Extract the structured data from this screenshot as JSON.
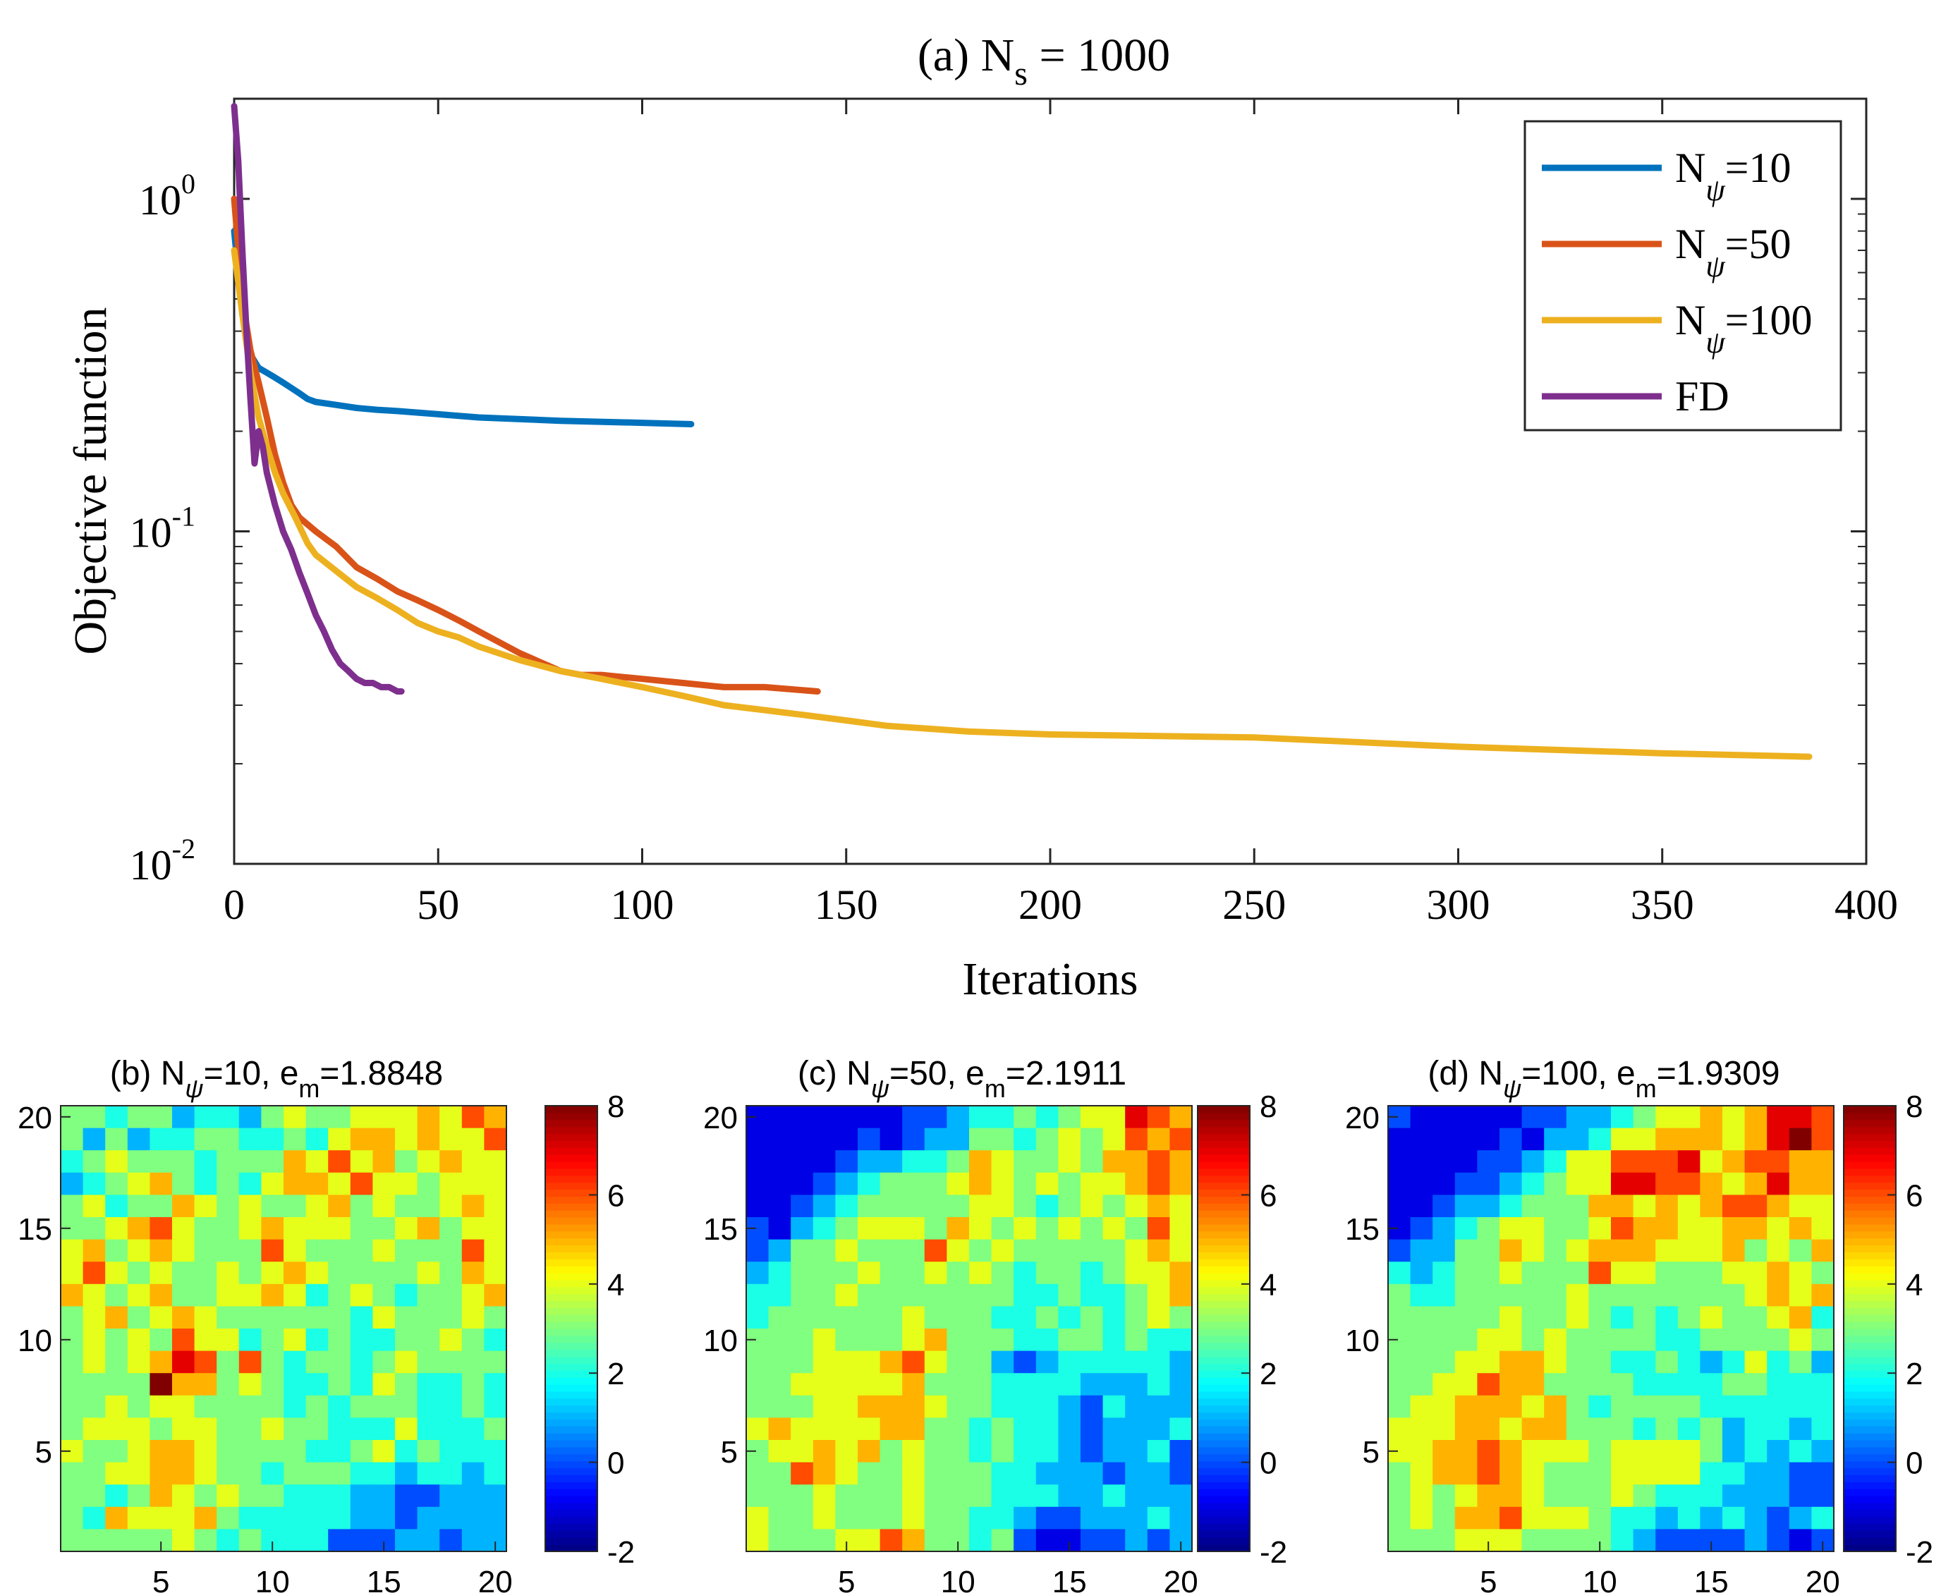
{
  "colors": {
    "blue": "#0072BD",
    "orange": "#D95319",
    "yellow": "#EDB120",
    "purple": "#7E2F8E",
    "axis": "#262626"
  },
  "chart_data": [
    {
      "type": "line",
      "title": "(a) N_s = 1000",
      "title_parts": {
        "prefix": "(a) N",
        "sub": "s",
        "suffix": " = 1000"
      },
      "xlabel": "Iterations",
      "ylabel": "Objective function",
      "yscale": "log",
      "xlim": [
        0,
        400
      ],
      "ylim": [
        0.01,
        2
      ],
      "xticks": [
        0,
        50,
        100,
        150,
        200,
        250,
        300,
        350,
        400
      ],
      "xtick_labels": [
        "0",
        "50",
        "100",
        "150",
        "200",
        "250",
        "300",
        "350",
        "400"
      ],
      "yticks": [
        0.01,
        0.1,
        1
      ],
      "ytick_labels": [
        {
          "base": "10",
          "exp": "-2"
        },
        {
          "base": "10",
          "exp": "-1"
        },
        {
          "base": "10",
          "exp": "0"
        }
      ],
      "legend_position": "top-right",
      "series": [
        {
          "name": "N_ψ=10",
          "label_base": "N",
          "label_sub": "ψ",
          "label_suffix": "=10",
          "color": "#0072BD",
          "x": [
            0,
            2,
            4,
            6,
            8,
            10,
            12,
            14,
            16,
            18,
            20,
            25,
            30,
            35,
            40,
            50,
            60,
            80,
            100,
            112
          ],
          "y": [
            0.8,
            0.45,
            0.34,
            0.31,
            0.3,
            0.29,
            0.28,
            0.27,
            0.26,
            0.25,
            0.245,
            0.24,
            0.235,
            0.232,
            0.23,
            0.225,
            0.22,
            0.215,
            0.212,
            0.21
          ]
        },
        {
          "name": "N_ψ=50",
          "label_base": "N",
          "label_sub": "ψ",
          "label_suffix": "=50",
          "color": "#D95319",
          "x": [
            0,
            2,
            4,
            6,
            8,
            10,
            12,
            14,
            16,
            20,
            25,
            30,
            35,
            40,
            45,
            50,
            55,
            60,
            70,
            80,
            85,
            90,
            100,
            110,
            120,
            130,
            143
          ],
          "y": [
            1.0,
            0.5,
            0.35,
            0.28,
            0.22,
            0.17,
            0.14,
            0.12,
            0.11,
            0.1,
            0.09,
            0.078,
            0.072,
            0.066,
            0.062,
            0.058,
            0.054,
            0.05,
            0.043,
            0.038,
            0.037,
            0.037,
            0.036,
            0.035,
            0.034,
            0.034,
            0.033
          ]
        },
        {
          "name": "N_ψ=100",
          "label_base": "N",
          "label_sub": "ψ",
          "label_suffix": "=100",
          "color": "#EDB120",
          "x": [
            0,
            2,
            4,
            6,
            8,
            10,
            12,
            15,
            18,
            20,
            25,
            30,
            35,
            40,
            45,
            50,
            55,
            60,
            70,
            80,
            90,
            100,
            110,
            120,
            130,
            140,
            150,
            160,
            170,
            180,
            200,
            250,
            300,
            350,
            386
          ],
          "y": [
            0.7,
            0.45,
            0.3,
            0.22,
            0.18,
            0.15,
            0.13,
            0.11,
            0.092,
            0.085,
            0.076,
            0.068,
            0.063,
            0.058,
            0.053,
            0.05,
            0.048,
            0.045,
            0.041,
            0.038,
            0.036,
            0.034,
            0.032,
            0.03,
            0.029,
            0.028,
            0.027,
            0.026,
            0.0255,
            0.025,
            0.0245,
            0.024,
            0.0225,
            0.0215,
            0.021
          ]
        },
        {
          "name": "FD",
          "label_base": "FD",
          "label_sub": "",
          "label_suffix": "",
          "color": "#7E2F8E",
          "x": [
            0,
            1,
            2,
            3,
            4,
            5,
            6,
            7,
            8,
            10,
            12,
            14,
            16,
            18,
            20,
            22,
            24,
            26,
            28,
            30,
            32,
            34,
            36,
            38,
            40,
            41
          ],
          "y": [
            1.9,
            1.3,
            0.7,
            0.4,
            0.25,
            0.16,
            0.2,
            0.18,
            0.15,
            0.12,
            0.1,
            0.088,
            0.075,
            0.065,
            0.056,
            0.05,
            0.044,
            0.04,
            0.038,
            0.036,
            0.035,
            0.035,
            0.034,
            0.034,
            0.033,
            0.033
          ]
        }
      ]
    },
    {
      "type": "heatmap",
      "title": "(b) N_ψ=10, e_m=1.8848",
      "title_parts": {
        "t1": "(b) N",
        "s1": "ψ",
        "t2": "=10, e",
        "s2": "m",
        "t3": "=1.8848"
      },
      "xlim": [
        0.5,
        20.5
      ],
      "ylim": [
        0.5,
        20.5
      ],
      "xticks": [
        5,
        10,
        15,
        20
      ],
      "yticks": [
        5,
        10,
        15,
        20
      ],
      "tick_labels": [
        "5",
        "10",
        "15",
        "20"
      ],
      "colorbar": {
        "clim": [
          -2,
          8
        ],
        "ticks": [
          -2,
          0,
          2,
          4,
          6,
          8
        ],
        "tick_labels": [
          "-2",
          "0",
          "2",
          "4",
          "6",
          "8"
        ]
      },
      "grid_rows_top_to_bottom": [
        "3 3 2 3 3 1 2 2 1 3 4 3 3 4 4 4 5 4 6 5",
        "3 1 3 1 2 2 3 3 2 2 3 2 4 5 5 4 5 4 4 6",
        "2 3 4 3 3 3 2 3 3 3 5 4 6 4 5 3 4 5 4 4",
        "1 2 3 4 5 3 2 3 2 4 5 5 4 6 4 4 3 4 4 4",
        "3 4 2 3 3 5 4 3 4 3 3 4 5 3 4 3 3 4 5 4",
        "3 3 4 5 6 4 3 3 4 5 4 4 4 3 3 4 5 3 4 4",
        "4 5 3 4 5 4 3 3 3 6 4 3 3 3 4 3 3 3 6 4",
        "4 6 4 3 4 3 3 4 3 4 5 4 3 3 3 3 4 3 5 4",
        "5 4 3 4 5 3 3 4 4 5 4 2 3 4 3 2 3 3 4 5",
        "3 4 5 3 4 5 4 3 3 3 3 3 3 2 4 3 3 3 4 3",
        "3 4 3 4 3 6 4 4 2 3 4 2 3 2 2 3 3 4 3 2",
        "3 4 3 4 5 7 6 3 6 3 2 3 3 2 3 4 3 3 3 3",
        "3 3 3 3 8 5 5 3 4 3 2 2 3 2 4 3 2 2 3 2",
        "3 3 4 3 4 4 3 3 3 3 2 3 2 3 3 3 2 2 3 2",
        "3 4 4 4 3 4 4 3 3 4 3 3 2 2 2 4 2 2 2 3",
        "4 3 3 4 5 5 4 3 3 3 3 2 2 3 4 2 3 2 2 2",
        "3 3 4 4 5 5 4 3 3 2 3 3 3 2 2 1 2 2 1 2",
        "3 3 2 3 5 4 3 4 3 3 2 2 2 1 1 0 0 1 1 1",
        "3 2 5 4 4 4 5 3 2 2 2 2 2 1 1 0 1 1 1 1",
        "3 3 3 3 3 4 3 2 3 2 2 2 0 0 0 1 1 0 1 1"
      ]
    },
    {
      "type": "heatmap",
      "title": "(c) N_ψ=50, e_m=2.1911",
      "title_parts": {
        "t1": "(c) N",
        "s1": "ψ",
        "t2": "=50, e",
        "s2": "m",
        "t3": "=2.1911"
      },
      "xlim": [
        0.5,
        20.5
      ],
      "ylim": [
        0.5,
        20.5
      ],
      "xticks": [
        5,
        10,
        15,
        20
      ],
      "yticks": [
        5,
        10,
        15,
        20
      ],
      "tick_labels": [
        "5",
        "10",
        "15",
        "20"
      ],
      "colorbar": {
        "clim": [
          -2,
          8
        ],
        "ticks": [
          -2,
          0,
          2,
          4,
          6,
          8
        ],
        "tick_labels": [
          "-2",
          "0",
          "2",
          "4",
          "6",
          "8"
        ]
      },
      "grid_rows_top_to_bottom": [
        "-1 -1 -1 -1 -1 -1 -1 0 0 1 2 2 3 2 3 4 4 7 6 5",
        "-1 -1 -1 -1 -1 0 -1 0 1 1 3 3 2 3 4 3 4 6 5 6",
        "-1 -1 -1 -1 0 1 1 2 2 3 5 4 3 3 4 3 5 5 6 5",
        "-1 -1 -1 0 1 2 3 3 3 4 5 4 3 4 3 4 4 5 6 5",
        "-1 -1 0 1 2 3 3 3 3 3 4 4 3 2 3 4 3 4 5 4",
        "0 -1 1 2 3 4 4 4 3 5 4 3 4 3 4 3 4 3 6 4",
        "0 1 3 3 4 3 3 3 6 4 3 4 3 3 3 3 3 4 5 4",
        "1 2 3 3 3 4 3 3 4 3 4 3 2 3 3 2 3 4 4 5",
        "2 2 3 3 4 3 3 3 3 3 3 3 2 2 3 2 2 3 4 5",
        "2 3 3 3 3 3 3 4 3 3 3 2 2 3 2 3 2 3 4 3",
        "3 3 3 4 3 3 3 4 5 3 3 3 2 2 3 3 2 3 2 2",
        "3 3 3 4 4 4 5 6 4 3 3 1 0 1 2 2 2 2 2 1",
        "3 3 4 4 4 4 4 5 3 3 3 2 2 2 2 1 1 1 2 1",
        "3 3 3 4 4 5 5 5 4 3 3 2 2 2 1 0 2 1 1 1",
        "4 5 4 4 4 4 5 5 3 3 2 3 2 2 1 0 1 1 1 2",
        "3 4 4 5 4 5 3 4 3 3 2 3 2 2 1 0 1 1 2 0",
        "3 3 6 5 4 3 3 4 3 3 3 2 2 1 1 1 0 1 1 0",
        "3 3 3 4 3 3 3 4 3 3 3 2 2 2 1 1 2 1 1 1",
        "4 3 3 4 3 3 3 4 3 3 2 2 1 0 0 1 1 1 2 1",
        "4 3 3 3 4 4 6 5 3 3 2 3 0 -1 -1 0 0 1 0 1"
      ]
    },
    {
      "type": "heatmap",
      "title": "(d) N_ψ=100, e_m=1.9309",
      "title_parts": {
        "t1": "(d) N",
        "s1": "ψ",
        "t2": "=100, e",
        "s2": "m",
        "t3": "=1.9309"
      },
      "xlim": [
        0.5,
        20.5
      ],
      "ylim": [
        0.5,
        20.5
      ],
      "xticks": [
        5,
        10,
        15,
        20
      ],
      "yticks": [
        5,
        10,
        15,
        20
      ],
      "tick_labels": [
        "5",
        "10",
        "15",
        "20"
      ],
      "colorbar": {
        "clim": [
          -2,
          8
        ],
        "ticks": [
          -2,
          0,
          2,
          4,
          6,
          8
        ],
        "tick_labels": [
          "-2",
          "0",
          "2",
          "4",
          "6",
          "8"
        ]
      },
      "grid_rows_top_to_bottom": [
        "0 -1 -1 -1 -1 -1 0 0 1 1 2 3 4 4 5 4 5 7 7 6",
        "-1 -1 -1 -1 -1 0 -1 1 1 2 4 4 5 5 5 4 5 7 8 6",
        "-1 -1 -1 -1 0 0 1 2 4 4 6 6 6 7 4 5 6 6 5 5",
        "-1 -1 -1 0 0 1 2 3 4 4 7 7 6 6 5 4 5 7 5 5",
        "-1 -1 0 1 1 2 3 3 3 5 5 4 5 4 5 6 6 5 4 4",
        "-1 0 1 2 3 4 4 3 3 4 6 5 5 4 4 5 5 4 5 4",
        "0 1 1 3 3 5 4 3 4 5 5 5 4 4 4 5 3 4 3 5",
        "2 1 2 3 3 4 3 3 3 6 4 4 3 3 3 4 4 5 4 3",
        "3 2 2 3 3 3 3 3 4 3 3 3 3 3 3 3 4 5 4 5",
        "3 3 3 3 3 4 3 3 4 3 2 3 2 3 4 3 3 4 5 2",
        "3 3 3 3 4 4 3 4 3 3 3 3 2 2 3 3 3 3 4 3",
        "3 3 3 4 4 5 5 4 3 3 2 2 3 2 1 2 4 2 3 1",
        "3 3 4 4 6 5 5 3 3 3 3 2 2 2 2 3 3 2 2 2",
        "3 4 4 5 5 5 4 5 3 2 3 3 3 3 2 2 2 2 2 2",
        "4 4 4 5 5 4 5 5 3 3 3 2 3 2 3 1 2 2 1 2",
        "4 4 5 5 6 5 4 4 4 3 4 4 4 4 3 1 2 1 2 1",
        "3 4 5 5 6 5 4 3 3 3 4 4 4 4 2 2 1 1 0 0",
        "3 4 3 4 5 5 4 3 3 3 4 3 2 2 2 1 1 1 0 0",
        "3 4 3 5 5 6 4 4 4 3 2 2 1 2 1 2 1 0 1 2",
        "3 3 3 4 4 4 3 3 3 3 2 1 0 0 0 0 1 0 -1 0"
      ]
    }
  ]
}
